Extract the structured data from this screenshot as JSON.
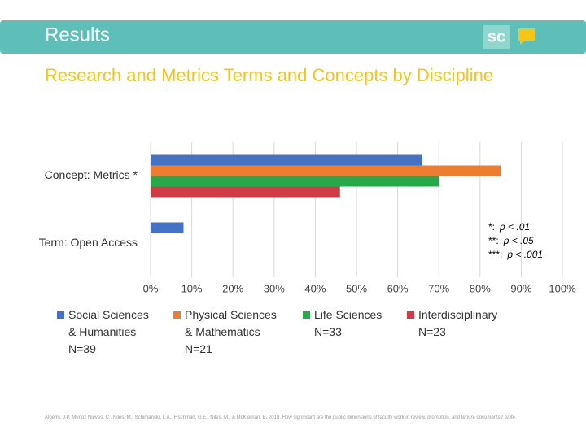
{
  "slide": {
    "header": "Results",
    "logo": "sc",
    "citation": {
      "text": "Alperin, J.P, Muñoz Nieves, C., Niles, M., Schimanski, L.A., Fischman, G.E., Niles, M., & McKiernan, E. 2018. How significant are the public dimensions of faculty work in review, promotion, and tenure documents? ",
      "journal": "eLife."
    }
  },
  "chart_data": {
    "type": "bar",
    "orientation": "horizontal",
    "title": "Research and Metrics Terms and Concepts by Discipline",
    "categories": [
      "Concept: Metrics *",
      "Term: Open Access"
    ],
    "series": [
      {
        "name": "Social Sciences\n& Humanities\nN=39",
        "color": "#4472c4",
        "values": [
          66,
          8
        ]
      },
      {
        "name": "Physical Sciences\n& Mathematics\nN=21",
        "color": "#ed7d31",
        "values": [
          85,
          0
        ]
      },
      {
        "name": "Life Sciences\nN=33",
        "color": "#27a84a",
        "values": [
          70,
          0
        ]
      },
      {
        "name": "Interdisciplinary\nN=23",
        "color": "#d13b45",
        "values": [
          46,
          0
        ]
      }
    ],
    "xlim": [
      0,
      100
    ],
    "xticks": [
      {
        "value": 0,
        "label": "0%"
      },
      {
        "value": 10,
        "label": "10%"
      },
      {
        "value": 20,
        "label": "20%"
      },
      {
        "value": 30,
        "label": "30%"
      },
      {
        "value": 40,
        "label": "40%"
      },
      {
        "value": 50,
        "label": "50%"
      },
      {
        "value": 60,
        "label": "60%"
      },
      {
        "value": 70,
        "label": "70%"
      },
      {
        "value": 80,
        "label": "80%"
      },
      {
        "value": 90,
        "label": "90%"
      },
      {
        "value": 100,
        "label": "100%"
      }
    ],
    "grid": true,
    "legend": "bottom",
    "annotations": [
      {
        "marker": "*:",
        "text": "p < .01"
      },
      {
        "marker": "**:",
        "text": "p < .05"
      },
      {
        "marker": "***:",
        "text": "p < .001"
      }
    ]
  }
}
